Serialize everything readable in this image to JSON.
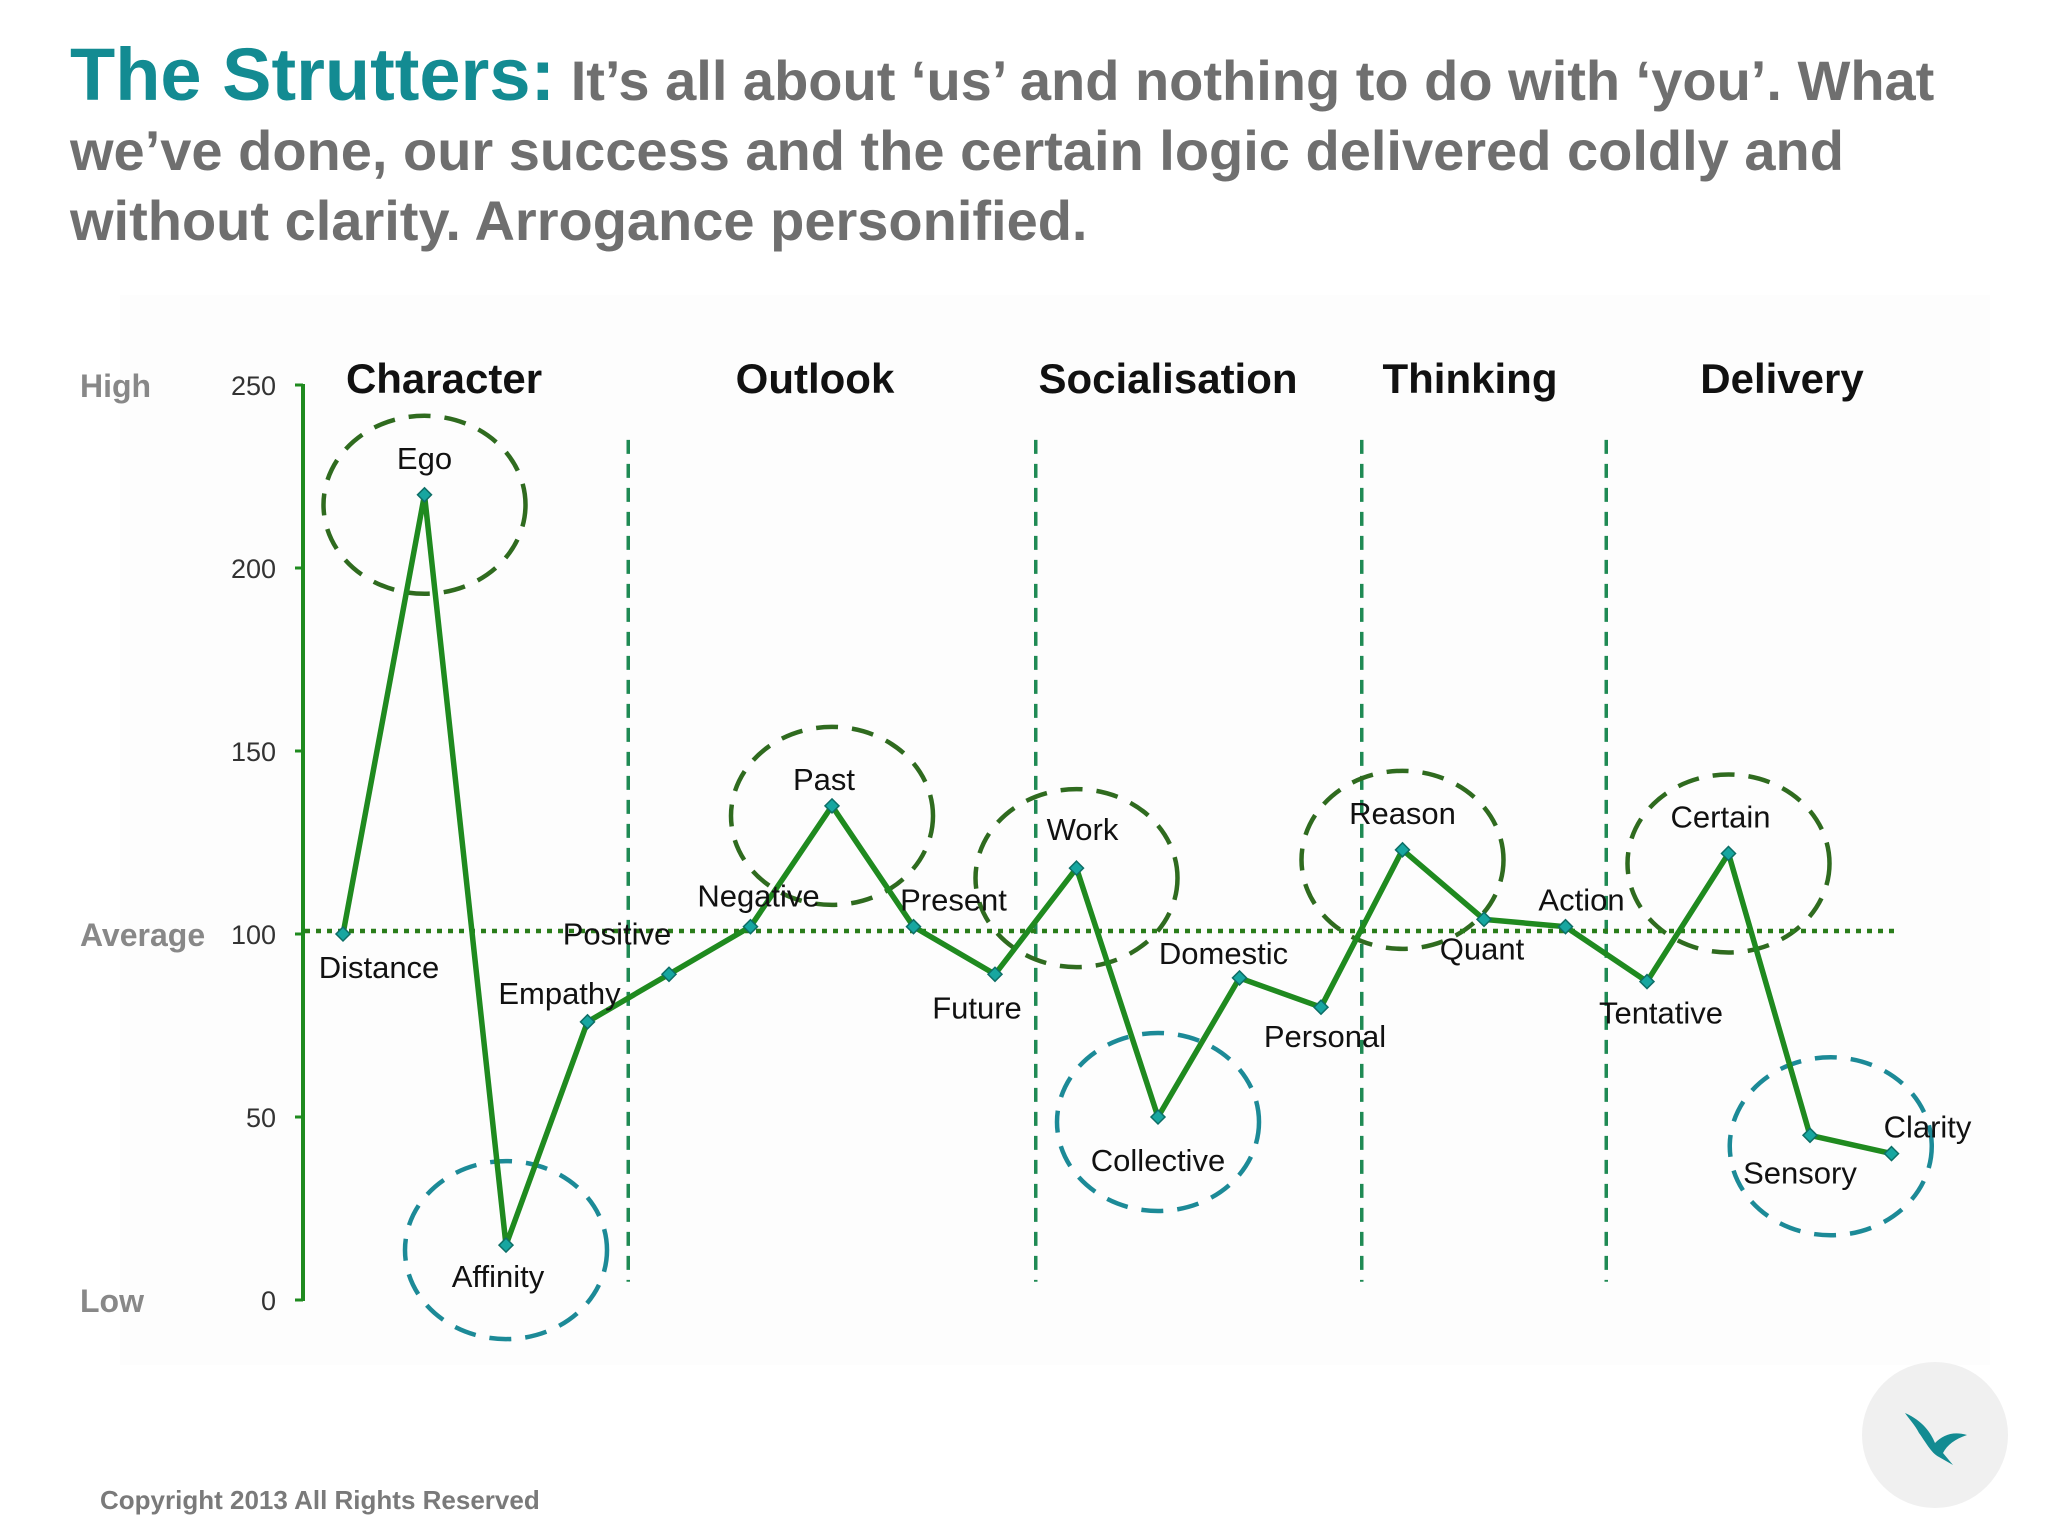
{
  "heading": {
    "title": "The Strutters:",
    "subtitle": "It’s all about ‘us’ and nothing to do with ‘you’. What we’ve done, our success and the certain logic delivered coldly and without clarity. Arrogance personified."
  },
  "footer": {
    "copyright": "Copyright 2013 All Rights Reserved"
  },
  "colors": {
    "brand": "#138b92",
    "line": "#1f8a1f",
    "marker": "#17a6a0",
    "high_circle": "#2f6b1f",
    "low_circle": "#1c8a97",
    "divider": "#1f8a54",
    "average_line": "#2a7d1a"
  },
  "logo": {
    "icon": "bird-icon"
  },
  "chart_data": {
    "type": "line",
    "yticks": [
      0,
      50,
      100,
      150,
      200,
      250
    ],
    "ylim": [
      0,
      250
    ],
    "y_level_labels": [
      {
        "label": "High",
        "value": 250
      },
      {
        "label": "Average",
        "value": 100
      },
      {
        "label": "Low",
        "value": 0
      }
    ],
    "average_value": 100,
    "sections": [
      "Character",
      "Outlook",
      "Socialisation",
      "Thinking",
      "Delivery"
    ],
    "points": [
      {
        "label": "Distance",
        "value": 100
      },
      {
        "label": "Ego",
        "value": 220,
        "highlight": "high"
      },
      {
        "label": "Affinity",
        "value": 15,
        "highlight": "low"
      },
      {
        "label": "Empathy",
        "value": 76
      },
      {
        "label": "Positive",
        "value": 89
      },
      {
        "label": "Negative",
        "value": 102
      },
      {
        "label": "Past",
        "value": 135,
        "highlight": "high"
      },
      {
        "label": "Present",
        "value": 102
      },
      {
        "label": "Future",
        "value": 89
      },
      {
        "label": "Work",
        "value": 118,
        "highlight": "high"
      },
      {
        "label": "Collective",
        "value": 50,
        "highlight": "low"
      },
      {
        "label": "Domestic",
        "value": 88
      },
      {
        "label": "Personal",
        "value": 80
      },
      {
        "label": "Reason",
        "value": 123,
        "highlight": "high"
      },
      {
        "label": "Quant",
        "value": 104
      },
      {
        "label": "Action",
        "value": 102
      },
      {
        "label": "Tentative",
        "value": 87
      },
      {
        "label": "Certain",
        "value": 122,
        "highlight": "high"
      },
      {
        "label": "Sensory",
        "value": 45,
        "highlight": "low"
      },
      {
        "label": "Clarity",
        "value": 40,
        "highlight": "low"
      }
    ]
  }
}
